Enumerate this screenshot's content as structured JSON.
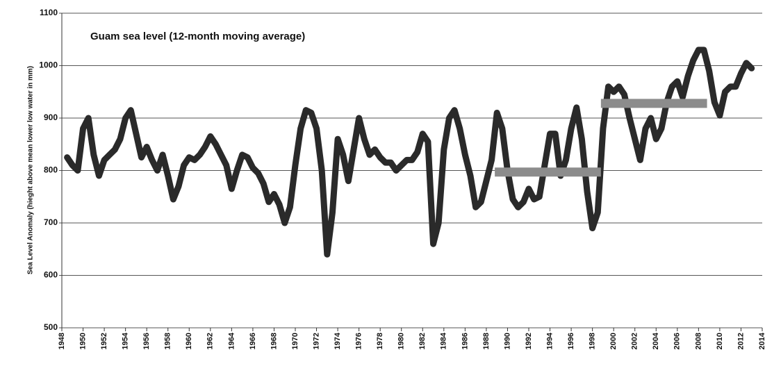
{
  "chart_data": {
    "type": "line",
    "title": "Guam sea level (12-month moving average)",
    "y_label": "Sea Level Anomaly (hieght above mean lower low water in mm)",
    "xlim": [
      1948,
      2014
    ],
    "ylim": [
      500,
      1100
    ],
    "yticks": [
      500,
      600,
      700,
      800,
      900,
      1000,
      1100
    ],
    "xticks": [
      1948,
      1950,
      1952,
      1954,
      1956,
      1958,
      1960,
      1962,
      1964,
      1966,
      1968,
      1970,
      1972,
      1974,
      1976,
      1978,
      1980,
      1982,
      1984,
      1986,
      1988,
      1990,
      1992,
      1994,
      1996,
      1998,
      2000,
      2002,
      2004,
      2006,
      2008,
      2010,
      2012,
      2014
    ],
    "grid": true,
    "series": [
      {
        "color": "#2a2a2a",
        "x": [
          1948.5,
          1949,
          1949.5,
          1950,
          1950.5,
          1951,
          1951.5,
          1952,
          1952.5,
          1953,
          1953.5,
          1954,
          1954.5,
          1955,
          1955.5,
          1956,
          1956.5,
          1957,
          1957.5,
          1958,
          1958.5,
          1959,
          1959.5,
          1960,
          1960.5,
          1961,
          1961.5,
          1962,
          1962.5,
          1963,
          1963.5,
          1964,
          1964.5,
          1965,
          1965.5,
          1966,
          1966.5,
          1967,
          1967.5,
          1968,
          1968.5,
          1969,
          1969.5,
          1970,
          1970.5,
          1971,
          1971.5,
          1972,
          1972.5,
          1973,
          1973.5,
          1974,
          1974.5,
          1975,
          1975.5,
          1976,
          1976.5,
          1977,
          1977.5,
          1978,
          1978.5,
          1979,
          1979.5,
          1980,
          1980.5,
          1981,
          1981.5,
          1982,
          1982.5,
          1983,
          1983.5,
          1984,
          1984.5,
          1985,
          1985.5,
          1986,
          1986.5,
          1987,
          1987.5,
          1988,
          1988.5,
          1989,
          1989.5,
          1990,
          1990.5,
          1991,
          1991.5,
          1992,
          1992.5,
          1993,
          1993.5,
          1994,
          1994.5,
          1995,
          1995.5,
          1996,
          1996.5,
          1997,
          1997.5,
          1998,
          1998.5,
          1999,
          1999.5,
          2000,
          2000.5,
          2001,
          2001.5,
          2002,
          2002.5,
          2003,
          2003.5,
          2004,
          2004.5,
          2005,
          2005.5,
          2006,
          2006.5,
          2007,
          2007.5,
          2008,
          2008.5,
          2009,
          2009.5,
          2010,
          2010.5,
          2011,
          2011.5,
          2012,
          2012.5,
          2013
        ],
        "values": [
          825,
          810,
          800,
          880,
          900,
          830,
          790,
          820,
          830,
          840,
          860,
          900,
          915,
          870,
          825,
          845,
          820,
          800,
          830,
          790,
          745,
          770,
          810,
          825,
          820,
          830,
          845,
          865,
          850,
          830,
          810,
          765,
          800,
          830,
          825,
          805,
          795,
          775,
          740,
          755,
          735,
          700,
          730,
          810,
          880,
          915,
          910,
          880,
          800,
          640,
          720,
          860,
          830,
          780,
          840,
          900,
          860,
          830,
          840,
          825,
          815,
          815,
          800,
          810,
          820,
          820,
          835,
          870,
          855,
          660,
          700,
          840,
          900,
          915,
          880,
          830,
          790,
          730,
          740,
          780,
          820,
          910,
          880,
          800,
          745,
          730,
          740,
          765,
          745,
          750,
          810,
          870,
          870,
          790,
          820,
          880,
          920,
          860,
          760,
          690,
          720,
          880,
          960,
          950,
          960,
          945,
          900,
          860,
          820,
          880,
          900,
          860,
          880,
          930,
          960,
          970,
          940,
          980,
          1010,
          1030,
          1030,
          990,
          930,
          905,
          950,
          960,
          960,
          985,
          1005,
          995
        ]
      },
      {
        "color": "#8c8c8c",
        "x": [
          1988.8,
          1998.8
        ],
        "values": [
          797,
          797
        ]
      },
      {
        "color": "#8c8c8c",
        "x": [
          1998.8,
          2008.8
        ],
        "values": [
          928,
          928
        ]
      }
    ]
  }
}
